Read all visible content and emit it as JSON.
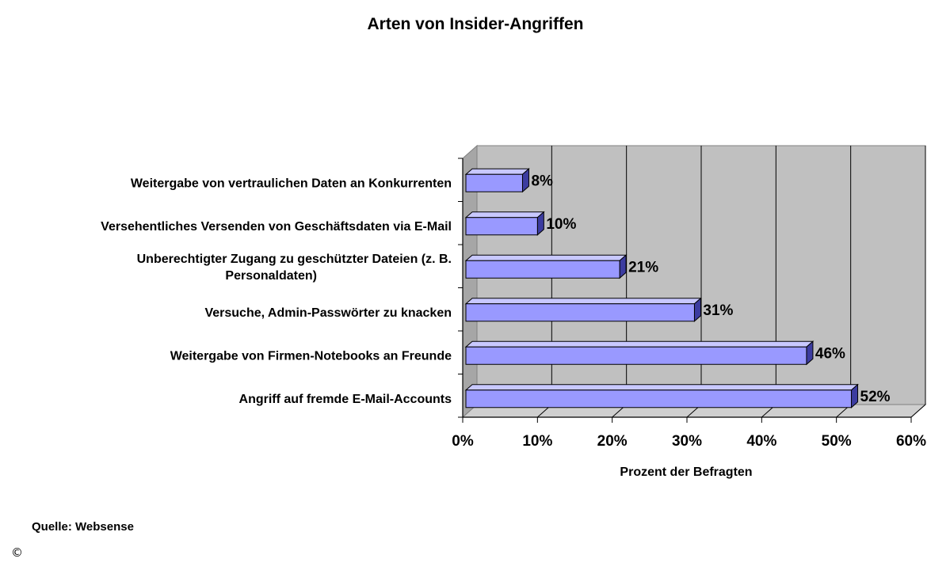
{
  "chart_data": {
    "type": "bar",
    "orientation": "horizontal",
    "title": "Arten von Insider-Angriffen",
    "xlabel": "Prozent der Befragten",
    "ylabel": "",
    "categories": [
      [
        "Weitergabe von vertraulichen Daten an Konkurrenten"
      ],
      [
        "Versehentliches Versenden von Geschäftsdaten via E-Mail"
      ],
      [
        "Unberechtigter Zugang zu geschützter Dateien (z. B.",
        "Personaldaten)"
      ],
      [
        "Versuche, Admin-Passwörter zu knacken"
      ],
      [
        "Weitergabe von Firmen-Notebooks an Freunde"
      ],
      [
        "Angriff auf fremde E-Mail-Accounts"
      ]
    ],
    "values": [
      8,
      10,
      21,
      31,
      46,
      52
    ],
    "data_labels": [
      "8%",
      "10%",
      "21%",
      "31%",
      "46%",
      "52%"
    ],
    "xlim": [
      0,
      60
    ],
    "xticks": [
      "0%",
      "10%",
      "20%",
      "30%",
      "40%",
      "50%",
      "60%"
    ],
    "grid": true,
    "bar_color": "#9999ff",
    "plot_background": "#c0c0c0"
  },
  "footer": {
    "source": "Quelle: Websense",
    "copyright": "©"
  }
}
